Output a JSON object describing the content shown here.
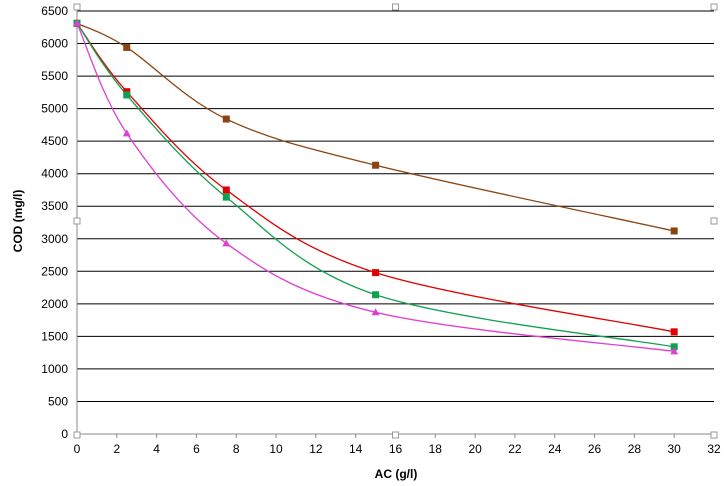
{
  "chart_data": {
    "type": "line",
    "title": "",
    "xlabel": "AC (g/l)",
    "ylabel": "COD (mg/l)",
    "xlim": [
      0,
      32
    ],
    "ylim": [
      0,
      6500
    ],
    "xticks": [
      "0",
      "2",
      "4",
      "6",
      "8",
      "10",
      "12",
      "14",
      "16",
      "18",
      "20",
      "22",
      "24",
      "26",
      "28",
      "30",
      "32"
    ],
    "yticks": [
      "0",
      "500",
      "1000",
      "1500",
      "2000",
      "2500",
      "3000",
      "3500",
      "4000",
      "4500",
      "5000",
      "5500",
      "6000",
      "6500"
    ],
    "grid": "horizontal",
    "legend": "none",
    "series": [
      {
        "color": "#8B4513",
        "marker": "square",
        "x": [
          0,
          2.5,
          7.5,
          15,
          30
        ],
        "y": [
          6310,
          5940,
          4840,
          4130,
          3120
        ]
      },
      {
        "color": "#E00000",
        "marker": "square",
        "x": [
          0,
          2.5,
          7.5,
          15,
          30
        ],
        "y": [
          6310,
          5260,
          3750,
          2480,
          1570
        ]
      },
      {
        "color": "#10A050",
        "marker": "square",
        "x": [
          0,
          2.5,
          7.5,
          15,
          30
        ],
        "y": [
          6310,
          5210,
          3640,
          2140,
          1340
        ]
      },
      {
        "color": "#E040D0",
        "marker": "triangle",
        "x": [
          0,
          2.5,
          7.5,
          15,
          30
        ],
        "y": [
          6310,
          4620,
          2930,
          1870,
          1270
        ]
      }
    ]
  }
}
